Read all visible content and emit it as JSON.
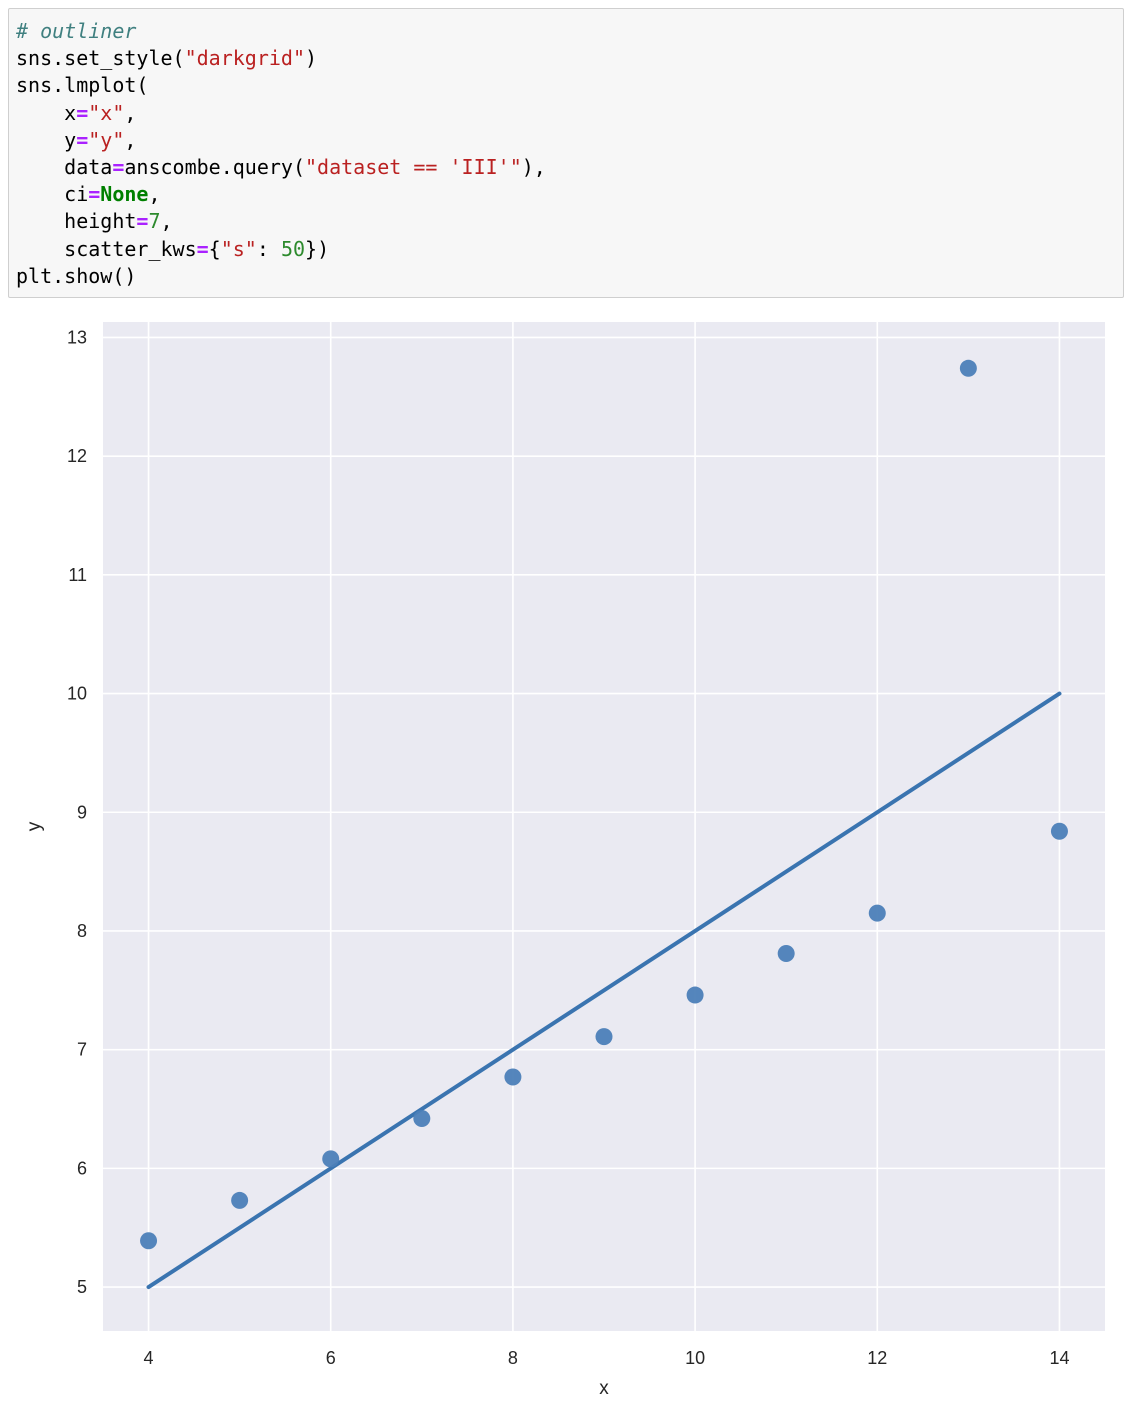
{
  "code": {
    "lines": [
      [
        {
          "t": "# outliner",
          "c": "comment"
        }
      ],
      [
        {
          "t": "sns.set_style(",
          "c": "plain"
        },
        {
          "t": "\"darkgrid\"",
          "c": "str"
        },
        {
          "t": ")",
          "c": "plain"
        }
      ],
      [
        {
          "t": "sns.lmplot(",
          "c": "plain"
        }
      ],
      [
        {
          "t": "    x",
          "c": "plain"
        },
        {
          "t": "=",
          "c": "op"
        },
        {
          "t": "\"x\"",
          "c": "str"
        },
        {
          "t": ",",
          "c": "plain"
        }
      ],
      [
        {
          "t": "    y",
          "c": "plain"
        },
        {
          "t": "=",
          "c": "op"
        },
        {
          "t": "\"y\"",
          "c": "str"
        },
        {
          "t": ",",
          "c": "plain"
        }
      ],
      [
        {
          "t": "    data",
          "c": "plain"
        },
        {
          "t": "=",
          "c": "op"
        },
        {
          "t": "anscombe.query(",
          "c": "plain"
        },
        {
          "t": "\"dataset == 'III'\"",
          "c": "str"
        },
        {
          "t": "),",
          "c": "plain"
        }
      ],
      [
        {
          "t": "    ci",
          "c": "plain"
        },
        {
          "t": "=",
          "c": "op"
        },
        {
          "t": "None",
          "c": "kw"
        },
        {
          "t": ",",
          "c": "plain"
        }
      ],
      [
        {
          "t": "    height",
          "c": "plain"
        },
        {
          "t": "=",
          "c": "op"
        },
        {
          "t": "7",
          "c": "num"
        },
        {
          "t": ",",
          "c": "plain"
        }
      ],
      [
        {
          "t": "    scatter_kws",
          "c": "plain"
        },
        {
          "t": "=",
          "c": "op"
        },
        {
          "t": "{",
          "c": "plain"
        },
        {
          "t": "\"s\"",
          "c": "str"
        },
        {
          "t": ": ",
          "c": "plain"
        },
        {
          "t": "50",
          "c": "num"
        },
        {
          "t": "})",
          "c": "plain"
        }
      ],
      [
        {
          "t": "plt.show()",
          "c": "plain"
        }
      ]
    ]
  },
  "chart_data": {
    "type": "scatter",
    "title": "",
    "xlabel": "x",
    "ylabel": "y",
    "xlim": [
      3.5,
      14.5
    ],
    "ylim": [
      4.63,
      13.13
    ],
    "xticks": [
      4,
      6,
      8,
      10,
      12,
      14
    ],
    "yticks": [
      5,
      6,
      7,
      8,
      9,
      10,
      11,
      12,
      13
    ],
    "grid": true,
    "style": "darkgrid",
    "colors": {
      "background": "#eaeaf2",
      "grid": "#ffffff",
      "points": "#4c7fb8",
      "line": "#3a74b0",
      "text": "#262626"
    },
    "points": [
      {
        "x": 4,
        "y": 5.39
      },
      {
        "x": 5,
        "y": 5.73
      },
      {
        "x": 6,
        "y": 6.08
      },
      {
        "x": 7,
        "y": 6.42
      },
      {
        "x": 8,
        "y": 6.77
      },
      {
        "x": 9,
        "y": 7.11
      },
      {
        "x": 10,
        "y": 7.46
      },
      {
        "x": 11,
        "y": 7.81
      },
      {
        "x": 12,
        "y": 8.15
      },
      {
        "x": 13,
        "y": 12.74
      },
      {
        "x": 14,
        "y": 8.84
      }
    ],
    "regression": {
      "x": [
        4,
        14
      ],
      "y": [
        5.0,
        10.0
      ]
    }
  }
}
